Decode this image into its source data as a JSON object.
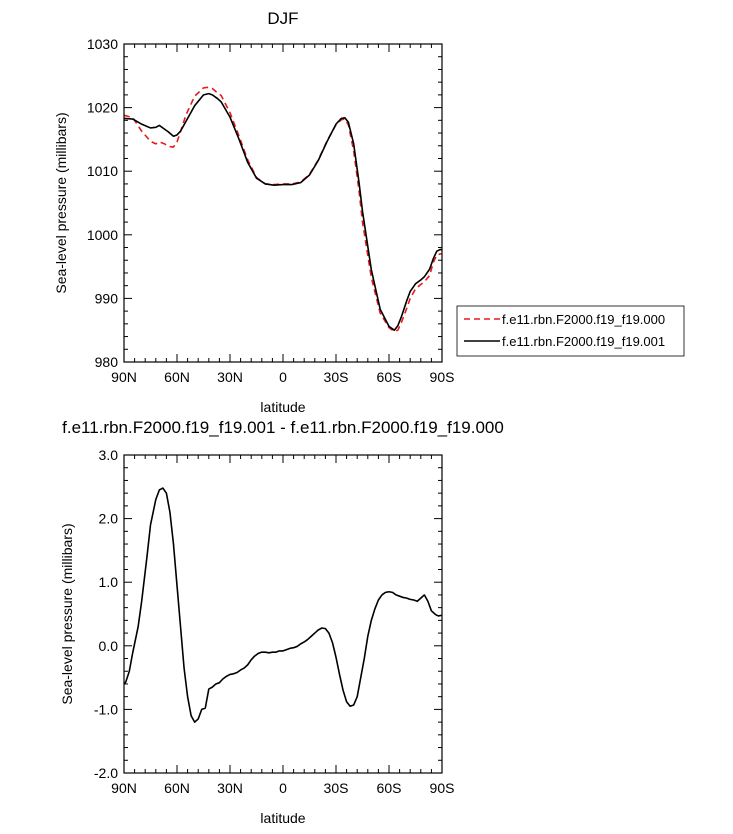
{
  "chart_data": [
    {
      "type": "line",
      "title": "DJF",
      "xlabel": "latitude",
      "ylabel": "Sea-level pressure (millibars)",
      "xlim": [
        90,
        -90
      ],
      "ylim": [
        980,
        1030
      ],
      "x_ticks": [
        90,
        60,
        30,
        0,
        -30,
        -60,
        -90
      ],
      "x_tick_labels": [
        "90N",
        "60N",
        "30N",
        "0",
        "30S",
        "60S",
        "90S"
      ],
      "y_ticks": [
        980,
        990,
        1000,
        1010,
        1020,
        1030
      ],
      "y_tick_labels": [
        "980",
        "990",
        "1000",
        "1010",
        "1020",
        "1030"
      ],
      "grid": false,
      "legend_position": "right",
      "series": [
        {
          "name": "f.e11.rbn.F2000.f19_f19.000",
          "color": "#e8191d",
          "dash": "dashed",
          "x": [
            90,
            85,
            80,
            75,
            72,
            70,
            67,
            65,
            62,
            60,
            58,
            55,
            50,
            45,
            42,
            40,
            37,
            35,
            30,
            25,
            20,
            15,
            10,
            5,
            0,
            -5,
            -10,
            -15,
            -20,
            -25,
            -30,
            -33,
            -35,
            -37,
            -40,
            -43,
            -45,
            -50,
            -55,
            -60,
            -63,
            -65,
            -67,
            -70,
            -72,
            -75,
            -78,
            -80,
            -83,
            -85,
            -87,
            -89,
            -90
          ],
          "y": [
            1018.8,
            1018.4,
            1016.3,
            1014.7,
            1014.3,
            1014.6,
            1014.3,
            1013.9,
            1013.8,
            1014.6,
            1016.2,
            1018.8,
            1021.8,
            1023.1,
            1023.2,
            1023.0,
            1022.3,
            1021.9,
            1019.2,
            1015.6,
            1011.8,
            1009.0,
            1008.0,
            1007.9,
            1008.0,
            1008.0,
            1008.3,
            1009.5,
            1011.8,
            1014.8,
            1017.3,
            1018.1,
            1018.2,
            1017.3,
            1013.2,
            1007.0,
            1002.0,
            993.3,
            987.7,
            985.4,
            984.8,
            985.0,
            986.2,
            988.4,
            990.0,
            991.5,
            992.2,
            992.6,
            993.6,
            995.6,
            996.8,
            997.0,
            997.0
          ]
        },
        {
          "name": "f.e11.rbn.F2000.f19_f19.001",
          "color": "#000000",
          "dash": "solid",
          "x": [
            90,
            85,
            80,
            75,
            72,
            70,
            67,
            65,
            62,
            60,
            58,
            55,
            50,
            45,
            42,
            40,
            37,
            35,
            30,
            25,
            20,
            15,
            10,
            5,
            0,
            -5,
            -10,
            -15,
            -20,
            -25,
            -30,
            -33,
            -35,
            -37,
            -40,
            -43,
            -45,
            -50,
            -55,
            -60,
            -63,
            -65,
            -67,
            -70,
            -72,
            -75,
            -78,
            -80,
            -83,
            -85,
            -87,
            -89,
            -90
          ],
          "y": [
            1018.3,
            1018.2,
            1017.4,
            1016.8,
            1016.9,
            1017.2,
            1016.6,
            1016.2,
            1015.5,
            1015.7,
            1016.3,
            1017.8,
            1020.3,
            1022.0,
            1022.2,
            1022.0,
            1021.4,
            1020.9,
            1018.5,
            1015.1,
            1011.4,
            1008.9,
            1008.0,
            1007.8,
            1007.9,
            1007.9,
            1008.2,
            1009.4,
            1011.7,
            1014.7,
            1017.4,
            1018.3,
            1018.4,
            1017.7,
            1014.3,
            1008.3,
            1003.7,
            994.5,
            988.3,
            985.6,
            985.0,
            985.7,
            987.1,
            989.6,
            991.1,
            992.3,
            992.9,
            993.4,
            994.6,
            996.2,
            997.4,
            997.7,
            997.6
          ]
        }
      ]
    },
    {
      "type": "line",
      "title": "f.e11.rbn.F2000.f19_f19.001 - f.e11.rbn.F2000.f19_f19.000",
      "xlabel": "latitude",
      "ylabel": "Sea-level pressure (millibars)",
      "xlim": [
        90,
        -90
      ],
      "ylim": [
        -2.0,
        3.0
      ],
      "x_ticks": [
        90,
        60,
        30,
        0,
        -30,
        -60,
        -90
      ],
      "x_tick_labels": [
        "90N",
        "60N",
        "30N",
        "0",
        "30S",
        "60S",
        "90S"
      ],
      "y_ticks": [
        -2.0,
        -1.0,
        0.0,
        1.0,
        2.0,
        3.0
      ],
      "y_tick_labels": [
        "-2.0",
        "-1.0",
        "0.0",
        "1.0",
        "2.0",
        "3.0"
      ],
      "grid": false,
      "series": [
        {
          "color": "#000000",
          "dash": "solid",
          "x": [
            90,
            89,
            87,
            85,
            82,
            80,
            77,
            75,
            72,
            70,
            68,
            66,
            64,
            62,
            60,
            58,
            56,
            54,
            52,
            50,
            48,
            46,
            44,
            42,
            40,
            38,
            36,
            34,
            32,
            30,
            28,
            26,
            24,
            22,
            20,
            18,
            16,
            14,
            12,
            10,
            8,
            6,
            4,
            2,
            0,
            -2,
            -4,
            -6,
            -8,
            -10,
            -12,
            -14,
            -16,
            -18,
            -20,
            -22,
            -24,
            -26,
            -28,
            -30,
            -32,
            -34,
            -36,
            -38,
            -40,
            -42,
            -44,
            -46,
            -48,
            -50,
            -52,
            -54,
            -56,
            -58,
            -60,
            -62,
            -64,
            -66,
            -68,
            -70,
            -72,
            -74,
            -76,
            -78,
            -80,
            -82,
            -84,
            -86,
            -87,
            -88,
            -90
          ],
          "y": [
            -0.6,
            -0.57,
            -0.4,
            -0.1,
            0.3,
            0.7,
            1.4,
            1.9,
            2.3,
            2.45,
            2.48,
            2.4,
            2.1,
            1.6,
            0.95,
            0.3,
            -0.35,
            -0.8,
            -1.1,
            -1.2,
            -1.15,
            -1.0,
            -0.98,
            -0.68,
            -0.65,
            -0.6,
            -0.58,
            -0.52,
            -0.48,
            -0.45,
            -0.44,
            -0.42,
            -0.38,
            -0.35,
            -0.3,
            -0.22,
            -0.16,
            -0.12,
            -0.1,
            -0.1,
            -0.11,
            -0.1,
            -0.1,
            -0.08,
            -0.08,
            -0.06,
            -0.04,
            -0.03,
            -0.01,
            0.03,
            0.06,
            0.1,
            0.15,
            0.2,
            0.25,
            0.28,
            0.27,
            0.2,
            0.05,
            -0.18,
            -0.45,
            -0.7,
            -0.88,
            -0.95,
            -0.93,
            -0.8,
            -0.5,
            -0.2,
            0.15,
            0.4,
            0.58,
            0.72,
            0.8,
            0.84,
            0.85,
            0.84,
            0.8,
            0.78,
            0.76,
            0.75,
            0.73,
            0.72,
            0.7,
            0.75,
            0.8,
            0.7,
            0.55,
            0.5,
            0.48,
            0.47,
            0.48
          ]
        }
      ]
    }
  ]
}
